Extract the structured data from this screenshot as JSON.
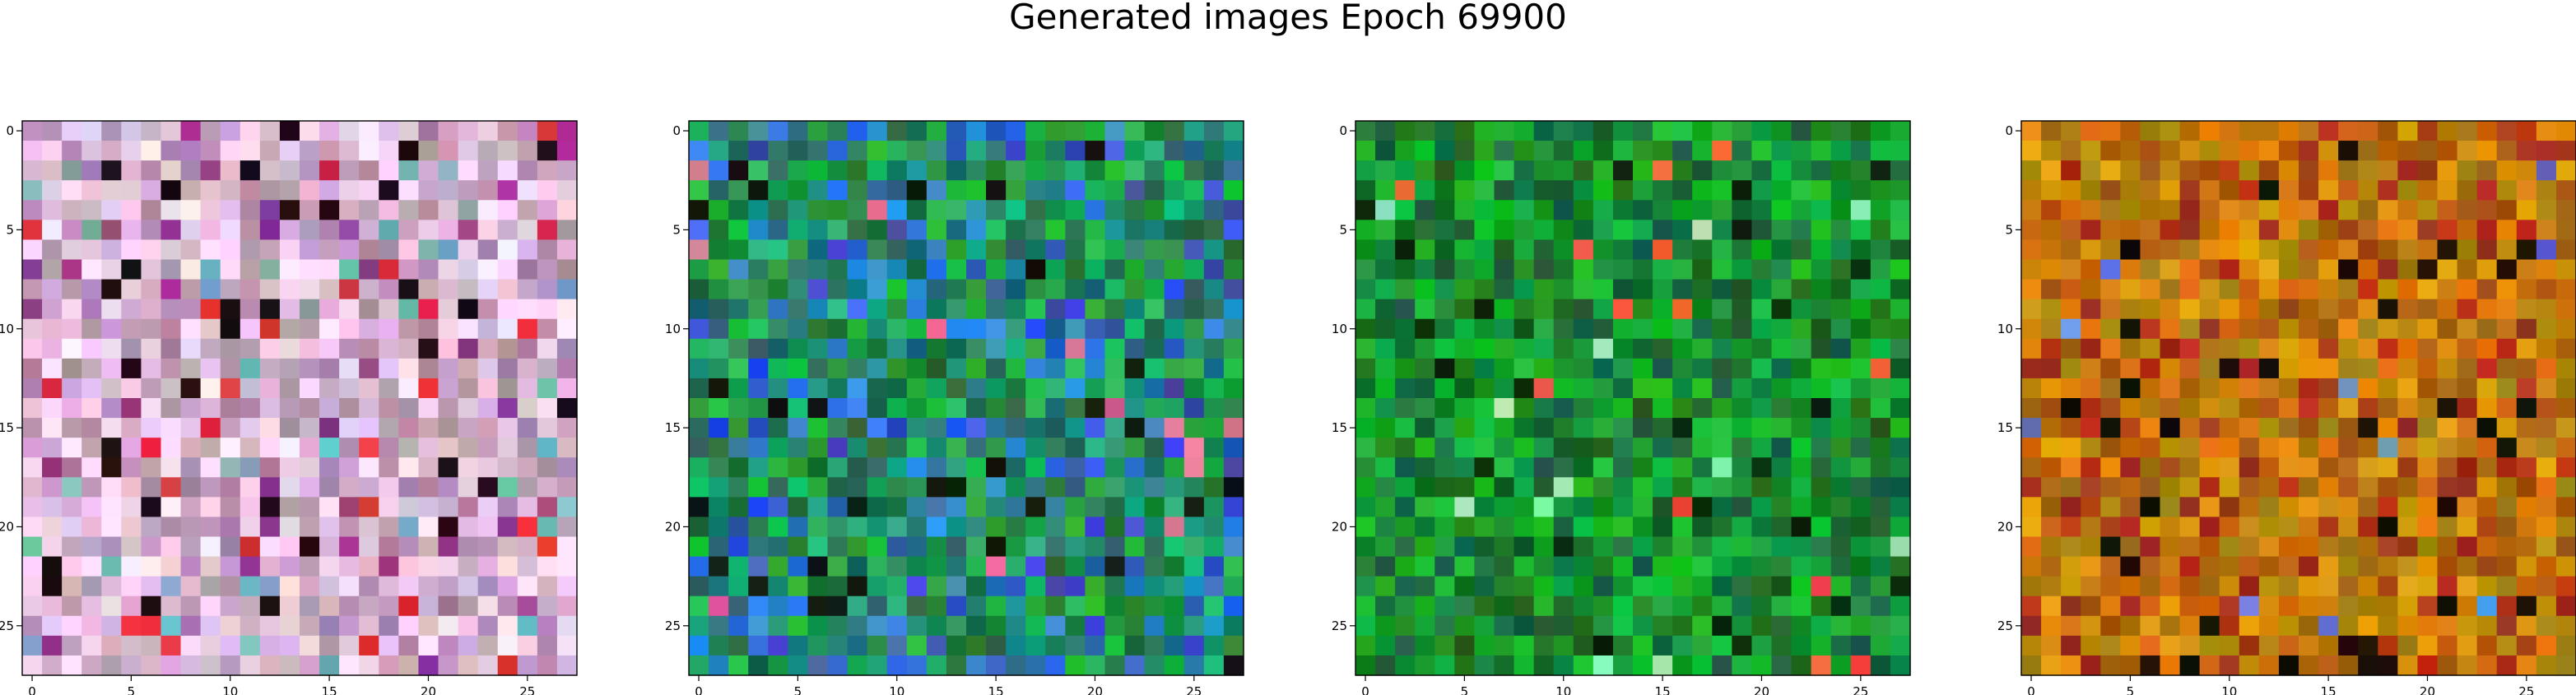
{
  "title": "Generated images Epoch 69900",
  "chart_data": [
    {
      "type": "heatmap",
      "palette": "pink-lavender",
      "xticks": [
        "0",
        "5",
        "10",
        "15",
        "20",
        "25"
      ],
      "yticks": [
        "0",
        "5",
        "10",
        "15",
        "20",
        "25"
      ],
      "xlim": [
        -0.5,
        27.5
      ],
      "ylim": [
        27.5,
        -0.5
      ]
    },
    {
      "type": "heatmap",
      "palette": "green-blue",
      "xticks": [
        "0",
        "5",
        "10",
        "15",
        "20",
        "25"
      ],
      "yticks": [
        "0",
        "5",
        "10",
        "15",
        "20",
        "25"
      ],
      "xlim": [
        -0.5,
        27.5
      ],
      "ylim": [
        27.5,
        -0.5
      ]
    },
    {
      "type": "heatmap",
      "palette": "green",
      "xticks": [
        "0",
        "5",
        "10",
        "15",
        "20",
        "25"
      ],
      "yticks": [
        "0",
        "5",
        "10",
        "15",
        "20",
        "25"
      ],
      "xlim": [
        -0.5,
        27.5
      ],
      "ylim": [
        27.5,
        -0.5
      ]
    },
    {
      "type": "heatmap",
      "palette": "orange-brown",
      "xticks": [
        "0",
        "5",
        "10",
        "15",
        "20",
        "25"
      ],
      "yticks": [
        "0",
        "5",
        "10",
        "15",
        "20",
        "25"
      ],
      "xlim": [
        -0.5,
        27.5
      ],
      "ylim": [
        27.5,
        -0.5
      ]
    }
  ]
}
